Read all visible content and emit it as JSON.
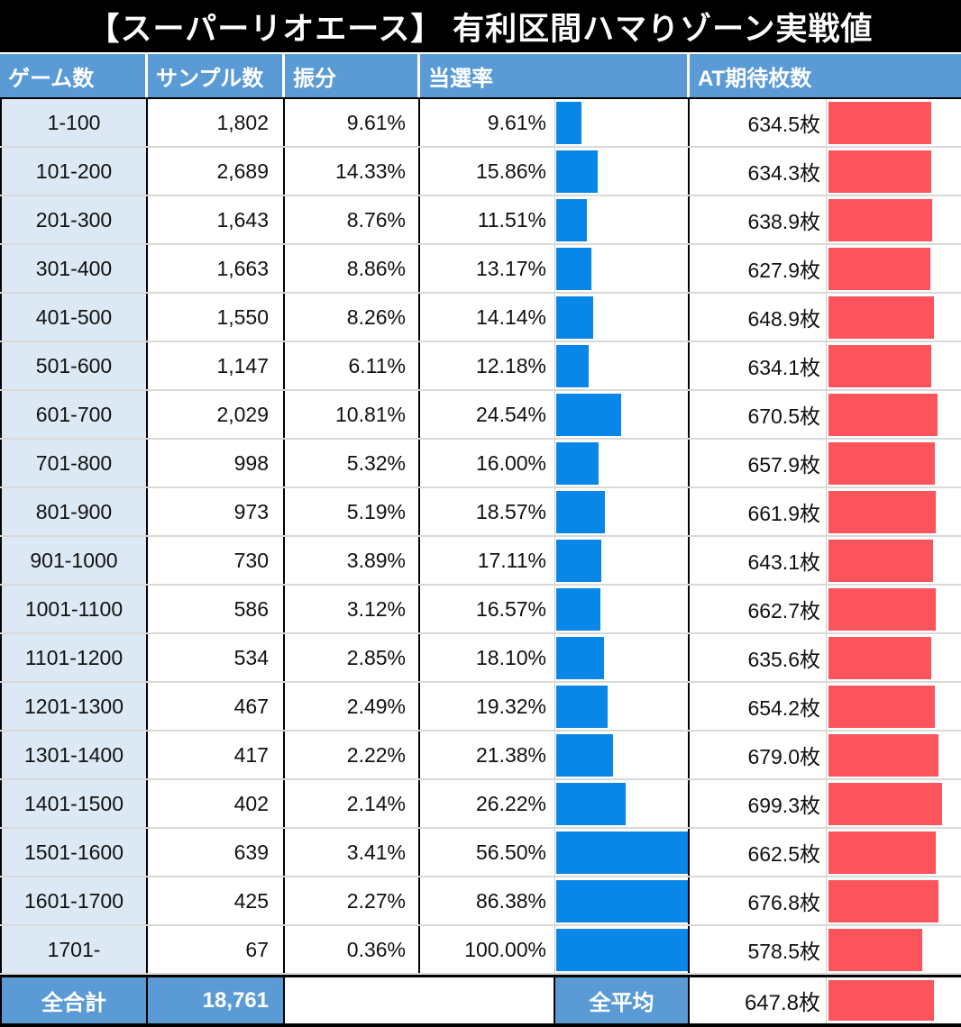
{
  "title": "【スーパーリオエース】 有利区間ハマりゾーン実戦値",
  "header": {
    "games": "ゲーム数",
    "samples": "サンプル数",
    "share": "振分",
    "win_rate": "当選率",
    "at_coins": "AT期待枚数"
  },
  "rows": [
    {
      "games": "1-100",
      "samples": "1,802",
      "share": "9.61%",
      "win_rate": "9.61%",
      "win_rate_value": 9.61,
      "at_coins": "634.5枚",
      "at_coins_value": 634.5
    },
    {
      "games": "101-200",
      "samples": "2,689",
      "share": "14.33%",
      "win_rate": "15.86%",
      "win_rate_value": 15.86,
      "at_coins": "634.3枚",
      "at_coins_value": 634.3
    },
    {
      "games": "201-300",
      "samples": "1,643",
      "share": "8.76%",
      "win_rate": "11.51%",
      "win_rate_value": 11.51,
      "at_coins": "638.9枚",
      "at_coins_value": 638.9
    },
    {
      "games": "301-400",
      "samples": "1,663",
      "share": "8.86%",
      "win_rate": "13.17%",
      "win_rate_value": 13.17,
      "at_coins": "627.9枚",
      "at_coins_value": 627.9
    },
    {
      "games": "401-500",
      "samples": "1,550",
      "share": "8.26%",
      "win_rate": "14.14%",
      "win_rate_value": 14.14,
      "at_coins": "648.9枚",
      "at_coins_value": 648.9
    },
    {
      "games": "501-600",
      "samples": "1,147",
      "share": "6.11%",
      "win_rate": "12.18%",
      "win_rate_value": 12.18,
      "at_coins": "634.1枚",
      "at_coins_value": 634.1
    },
    {
      "games": "601-700",
      "samples": "2,029",
      "share": "10.81%",
      "win_rate": "24.54%",
      "win_rate_value": 24.54,
      "at_coins": "670.5枚",
      "at_coins_value": 670.5
    },
    {
      "games": "701-800",
      "samples": "998",
      "share": "5.32%",
      "win_rate": "16.00%",
      "win_rate_value": 16.0,
      "at_coins": "657.9枚",
      "at_coins_value": 657.9
    },
    {
      "games": "801-900",
      "samples": "973",
      "share": "5.19%",
      "win_rate": "18.57%",
      "win_rate_value": 18.57,
      "at_coins": "661.9枚",
      "at_coins_value": 661.9
    },
    {
      "games": "901-1000",
      "samples": "730",
      "share": "3.89%",
      "win_rate": "17.11%",
      "win_rate_value": 17.11,
      "at_coins": "643.1枚",
      "at_coins_value": 643.1
    },
    {
      "games": "1001-1100",
      "samples": "586",
      "share": "3.12%",
      "win_rate": "16.57%",
      "win_rate_value": 16.57,
      "at_coins": "662.7枚",
      "at_coins_value": 662.7
    },
    {
      "games": "1101-1200",
      "samples": "534",
      "share": "2.85%",
      "win_rate": "18.10%",
      "win_rate_value": 18.1,
      "at_coins": "635.6枚",
      "at_coins_value": 635.6
    },
    {
      "games": "1201-1300",
      "samples": "467",
      "share": "2.49%",
      "win_rate": "19.32%",
      "win_rate_value": 19.32,
      "at_coins": "654.2枚",
      "at_coins_value": 654.2
    },
    {
      "games": "1301-1400",
      "samples": "417",
      "share": "2.22%",
      "win_rate": "21.38%",
      "win_rate_value": 21.38,
      "at_coins": "679.0枚",
      "at_coins_value": 679.0
    },
    {
      "games": "1401-1500",
      "samples": "402",
      "share": "2.14%",
      "win_rate": "26.22%",
      "win_rate_value": 26.22,
      "at_coins": "699.3枚",
      "at_coins_value": 699.3
    },
    {
      "games": "1501-1600",
      "samples": "639",
      "share": "3.41%",
      "win_rate": "56.50%",
      "win_rate_value": 56.5,
      "at_coins": "662.5枚",
      "at_coins_value": 662.5
    },
    {
      "games": "1601-1700",
      "samples": "425",
      "share": "2.27%",
      "win_rate": "86.38%",
      "win_rate_value": 86.38,
      "at_coins": "676.8枚",
      "at_coins_value": 676.8
    },
    {
      "games": "1701-",
      "samples": "67",
      "share": "0.36%",
      "win_rate": "100.00%",
      "win_rate_value": 100.0,
      "at_coins": "578.5枚",
      "at_coins_value": 578.5
    }
  ],
  "footer": {
    "total_label": "全合計",
    "total_samples": "18,761",
    "avg_label": "全平均",
    "avg_coins": "647.8枚",
    "avg_coins_value": 647.8
  },
  "colors": {
    "title_bg": "#000000",
    "header_bg": "#5b9bd5",
    "games_col_bg": "#dce8f4",
    "win_rate_bar": "#0987e8",
    "at_coins_bar": "#fc545c",
    "row_divider": "#d9d9d9",
    "border": "#000000"
  },
  "chart_data": {
    "type": "table",
    "title": "【スーパーリオエース】 有利区間ハマりゾーン実戦値",
    "columns": [
      "ゲーム数",
      "サンプル数",
      "振分",
      "当選率",
      "AT期待枚数"
    ],
    "categories": [
      "1-100",
      "101-200",
      "201-300",
      "301-400",
      "401-500",
      "501-600",
      "601-700",
      "701-800",
      "801-900",
      "901-1000",
      "1001-1100",
      "1101-1200",
      "1201-1300",
      "1301-1400",
      "1401-1500",
      "1501-1600",
      "1601-1700",
      "1701-"
    ],
    "series": [
      {
        "name": "サンプル数",
        "values": [
          1802,
          2689,
          1643,
          1663,
          1550,
          1147,
          2029,
          998,
          973,
          730,
          586,
          534,
          467,
          417,
          402,
          639,
          425,
          67
        ]
      },
      {
        "name": "振分(%)",
        "values": [
          9.61,
          14.33,
          8.76,
          8.86,
          8.26,
          6.11,
          10.81,
          5.32,
          5.19,
          3.89,
          3.12,
          2.85,
          2.49,
          2.22,
          2.14,
          3.41,
          2.27,
          0.36
        ]
      },
      {
        "name": "当選率(%)",
        "values": [
          9.61,
          15.86,
          11.51,
          13.17,
          14.14,
          12.18,
          24.54,
          16.0,
          18.57,
          17.11,
          16.57,
          18.1,
          19.32,
          21.38,
          26.22,
          56.5,
          86.38,
          100.0
        ]
      },
      {
        "name": "AT期待枚数(枚)",
        "values": [
          634.5,
          634.3,
          638.9,
          627.9,
          648.9,
          634.1,
          670.5,
          657.9,
          661.9,
          643.1,
          662.7,
          635.6,
          654.2,
          679.0,
          699.3,
          662.5,
          676.8,
          578.5
        ]
      }
    ],
    "embedded_bars": [
      {
        "column": "当選率",
        "type": "bar",
        "orientation": "horizontal",
        "color": "#0987e8",
        "range": [
          0,
          50
        ],
        "note": "in-cell data bars; values above ~50% are clipped at the cell edge"
      },
      {
        "column": "AT期待枚数",
        "type": "bar",
        "orientation": "horizontal",
        "color": "#fc545c",
        "range": [
          0,
          820
        ]
      }
    ],
    "totals": {
      "全合計_サンプル数": 18761,
      "全平均_AT期待枚数": 647.8
    },
    "legend_position": "none",
    "grid": "table-borders"
  }
}
